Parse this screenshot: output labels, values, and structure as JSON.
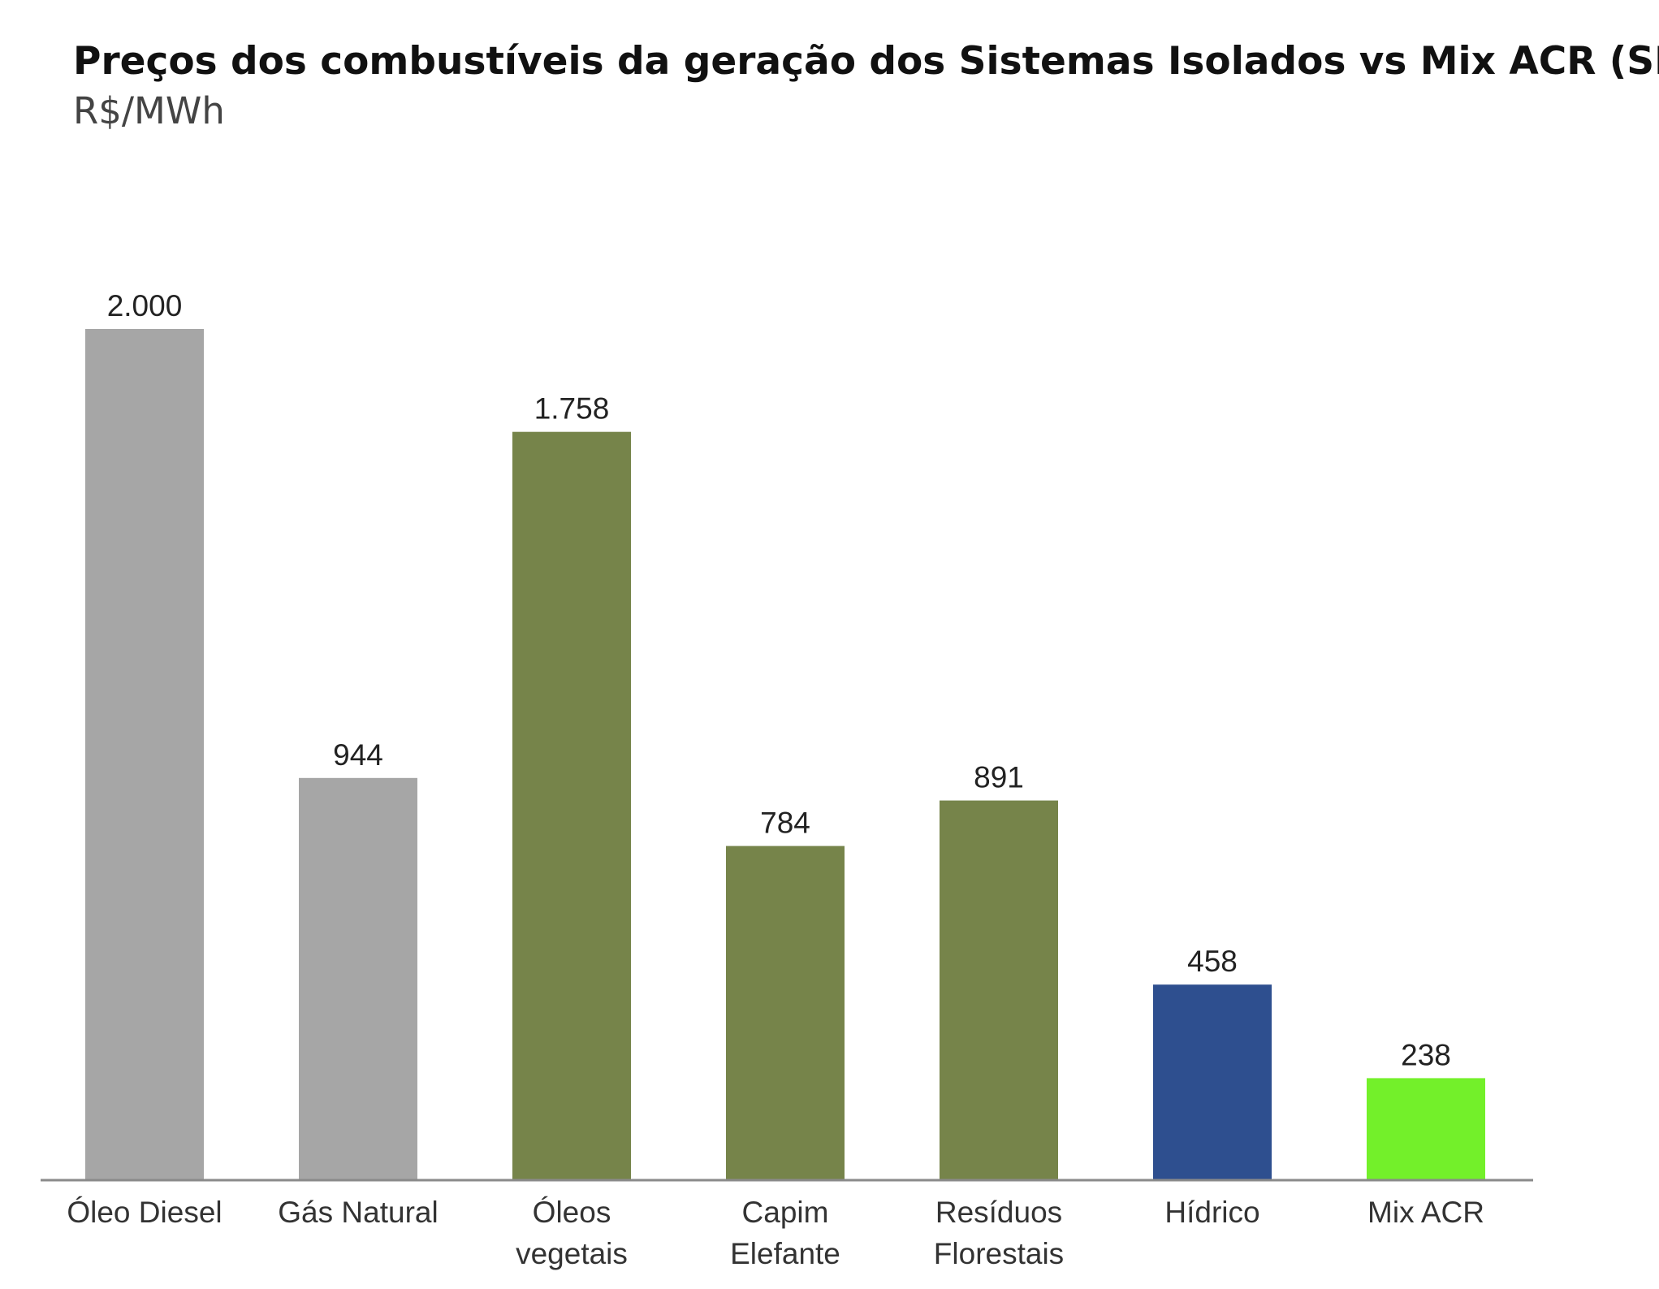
{
  "chart_data": {
    "type": "bar",
    "title": "Preços dos combustíveis da geração dos Sistemas Isolados vs Mix ACR (SIN)",
    "subtitle": "R$/MWh",
    "categories": [
      [
        "Óleo Diesel"
      ],
      [
        "Gás Natural"
      ],
      [
        "Óleos",
        "vegetais"
      ],
      [
        "Capim",
        "Elefante"
      ],
      [
        "Resíduos",
        "Florestais"
      ],
      [
        "Hídrico"
      ],
      [
        "Mix ACR"
      ]
    ],
    "values": [
      2000,
      944,
      1758,
      784,
      891,
      458,
      238
    ],
    "value_labels": [
      "2.000",
      "944",
      "1.758",
      "784",
      "891",
      "458",
      "238"
    ],
    "colors": [
      "#a6a6a6",
      "#a6a6a6",
      "#76844a",
      "#76844a",
      "#76844a",
      "#2e4f8f",
      "#73f02a"
    ],
    "ylim": [
      0,
      2000
    ],
    "grid": false,
    "legend": "none"
  }
}
